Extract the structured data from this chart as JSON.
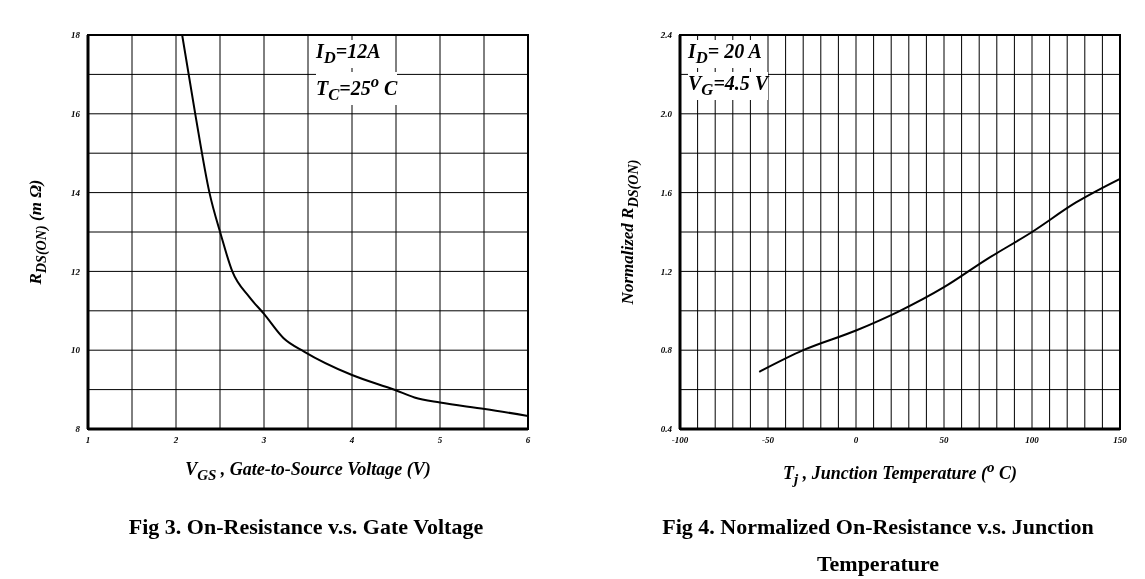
{
  "chart_data": [
    {
      "type": "line",
      "title": "Fig 3. On-Resistance  v.s. Gate Voltage",
      "xlabel": "V$_{GS}$ , Gate-to-Source Voltage (V)",
      "ylabel": "R$_{DS(ON)}$ (m Ω)",
      "annotations": [
        "I$_{D}$=12A",
        "T$_{C}$=25$^{o}$ C"
      ],
      "series": [
        {
          "color": "#000000",
          "x": [
            2.07,
            2.22,
            2.38,
            2.51,
            2.64,
            2.83,
            3.0,
            3.22,
            3.46,
            4.0,
            4.49,
            4.71,
            5.0,
            5.51,
            6.0
          ],
          "values": [
            18,
            15.98,
            14,
            12.93,
            12,
            11.36,
            10.92,
            10.31,
            9.96,
            9.37,
            8.99,
            8.8,
            8.67,
            8.51,
            8.33
          ]
        }
      ],
      "xlim": [
        1,
        6
      ],
      "xticks": [
        1,
        {
          "value": 1.5,
          "label": null
        },
        2,
        {
          "value": 2.5,
          "label": null
        },
        3,
        {
          "value": 3.5,
          "label": null
        },
        4,
        {
          "value": 4.5,
          "label": null
        },
        5,
        {
          "value": 5.5,
          "label": null
        },
        6
      ],
      "ylim": [
        8,
        18
      ],
      "yticks": [
        8,
        {
          "value": 9,
          "label": null
        },
        10,
        {
          "value": 11,
          "label": null
        },
        12,
        {
          "value": 13,
          "label": null
        },
        14,
        {
          "value": 15,
          "label": null
        },
        16,
        {
          "value": 17,
          "label": null
        },
        18
      ],
      "grid": true,
      "legend": false,
      "marker": "none",
      "line_style": "solid"
    },
    {
      "type": "line",
      "title": "Fig 4. Normalized On-Resistance v.s. Junction Temperature",
      "xlabel": "T$_{j}$ , Junction Temperature ($^{o}$ C)",
      "ylabel": "Normalized R$_{DS(ON)}$",
      "annotations": [
        "I$_{D}$= 20 A",
        "V$_{G}$=4.5 V"
      ],
      "series": [
        {
          "color": "#000000",
          "x": [
            -55,
            -30,
            0,
            25,
            50,
            74,
            100,
            125,
            150
          ],
          "values": [
            0.69,
            0.8,
            0.9,
            1.0,
            1.12,
            1.26,
            1.4,
            1.55,
            1.67
          ]
        }
      ],
      "xlim": [
        -100,
        150
      ],
      "xticks": [
        -100,
        {
          "value": -90,
          "label": null
        },
        {
          "value": -80,
          "label": null
        },
        {
          "value": -70,
          "label": null
        },
        {
          "value": -60,
          "label": null
        },
        -50,
        {
          "value": -40,
          "label": null
        },
        {
          "value": -30,
          "label": null
        },
        {
          "value": -20,
          "label": null
        },
        {
          "value": -10,
          "label": null
        },
        0,
        {
          "value": 10,
          "label": null
        },
        {
          "value": 20,
          "label": null
        },
        {
          "value": 30,
          "label": null
        },
        {
          "value": 40,
          "label": null
        },
        50,
        {
          "value": 60,
          "label": null
        },
        {
          "value": 70,
          "label": null
        },
        {
          "value": 80,
          "label": null
        },
        {
          "value": 90,
          "label": null
        },
        100,
        {
          "value": 110,
          "label": null
        },
        {
          "value": 120,
          "label": null
        },
        {
          "value": 130,
          "label": null
        },
        {
          "value": 140,
          "label": null
        },
        150
      ],
      "ylim": [
        0.4,
        2.4
      ],
      "yticks": [
        {
          "value": 0.4,
          "label": "0.4"
        },
        {
          "value": 0.6,
          "label": null
        },
        {
          "value": 0.8,
          "label": "0.8"
        },
        {
          "value": 1.0,
          "label": null
        },
        {
          "value": 1.2,
          "label": "1.2"
        },
        {
          "value": 1.4,
          "label": null
        },
        {
          "value": 1.6,
          "label": "1.6"
        },
        {
          "value": 1.8,
          "label": null
        },
        {
          "value": 2.0,
          "label": "2.0"
        },
        {
          "value": 2.2,
          "label": null
        },
        {
          "value": 2.4,
          "label": "2.4"
        }
      ],
      "grid": true,
      "legend": false,
      "marker": "none",
      "line_style": "solid"
    }
  ]
}
